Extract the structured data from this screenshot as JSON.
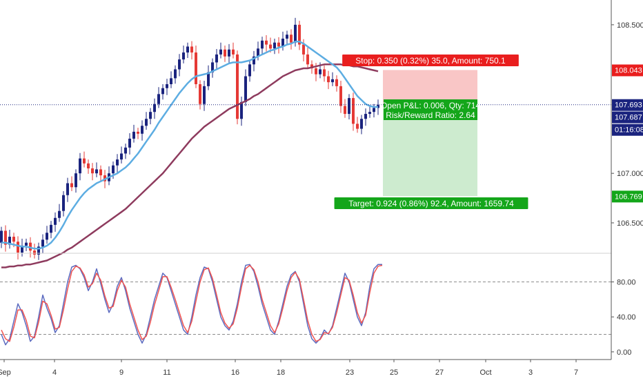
{
  "chart_data": [
    {
      "type": "candlestick",
      "ylim": [
        106.2,
        108.75
      ],
      "y_ticks": [
        "106.500",
        "107.000",
        "108.500"
      ],
      "x_ticks": [
        "Sep",
        "4",
        "9",
        "11",
        "16",
        "18",
        "23",
        "25",
        "27",
        "Oct",
        "3",
        "7"
      ],
      "colors": {
        "up": "#1a237e",
        "down": "#e53935",
        "ma_fast": "#5dade2",
        "ma_slow": "#8e3b5e",
        "grid": "#8a8a8a",
        "stop_zone": "#f9c6c6",
        "target_zone": "#cdebcf"
      },
      "price_tags": [
        {
          "label": "108.043",
          "value": 108.043,
          "color": "#e91e1e"
        },
        {
          "label": "107.693",
          "value": 107.693,
          "color": "#1a237e"
        },
        {
          "label": "107.687",
          "value": 107.687,
          "color": "#1a237e"
        },
        {
          "label": "01:16:08",
          "value": 107.55,
          "color": "#1a237e"
        },
        {
          "label": "106.769",
          "value": 106.769,
          "color": "#14a61a"
        }
      ],
      "current_price": 107.693,
      "position": {
        "entry": 107.693,
        "stop": 108.043,
        "target": 106.769,
        "stop_label": "Stop: 0.350 (0.32%) 35.0, Amount: 750.1",
        "pnl_label": "Open P&L: 0.006, Qty: 714",
        "rr_label": "Risk/Reward Ratio: 2.64",
        "target_label": "Target: 0.924 (0.86%) 92.4, Amount: 1659.74"
      },
      "candles_close": [
        106.42,
        106.28,
        106.36,
        106.31,
        106.2,
        106.27,
        106.3,
        106.22,
        106.18,
        106.26,
        106.33,
        106.4,
        106.48,
        106.55,
        106.62,
        106.78,
        106.9,
        106.86,
        107.0,
        107.15,
        107.1,
        107.05,
        107.0,
        107.04,
        106.98,
        106.92,
        107.0,
        107.08,
        107.14,
        107.2,
        107.26,
        107.35,
        107.42,
        107.4,
        107.48,
        107.55,
        107.62,
        107.7,
        107.8,
        107.86,
        107.9,
        107.96,
        108.05,
        108.15,
        108.22,
        108.28,
        108.22,
        107.9,
        107.7,
        107.88,
        108.02,
        108.12,
        108.2,
        108.25,
        108.18,
        108.25,
        108.2,
        107.55,
        107.72,
        107.98,
        108.1,
        108.18,
        108.26,
        108.34,
        108.3,
        108.26,
        108.32,
        108.28,
        108.36,
        108.4,
        108.32,
        108.5,
        108.3,
        108.2,
        108.1,
        108.06,
        108.0,
        108.05,
        107.98,
        107.92,
        107.95,
        107.88,
        107.68,
        107.6,
        107.76,
        107.5,
        107.45,
        107.55,
        107.6,
        107.62,
        107.66,
        107.69
      ],
      "candles_open": [
        106.3,
        106.42,
        106.28,
        106.36,
        106.31,
        106.2,
        106.27,
        106.3,
        106.22,
        106.18,
        106.26,
        106.33,
        106.4,
        106.48,
        106.55,
        106.62,
        106.78,
        106.9,
        106.86,
        107.0,
        107.15,
        107.1,
        107.05,
        107.0,
        107.04,
        106.98,
        106.92,
        107.0,
        107.08,
        107.14,
        107.2,
        107.26,
        107.35,
        107.42,
        107.4,
        107.48,
        107.55,
        107.62,
        107.7,
        107.8,
        107.86,
        107.9,
        107.96,
        108.05,
        108.15,
        108.22,
        108.28,
        108.22,
        107.9,
        107.7,
        107.88,
        108.02,
        108.12,
        108.2,
        108.25,
        108.18,
        108.25,
        108.2,
        107.55,
        107.72,
        107.98,
        108.1,
        108.18,
        108.26,
        108.34,
        108.3,
        108.26,
        108.32,
        108.28,
        108.36,
        108.4,
        108.32,
        108.5,
        108.3,
        108.2,
        108.1,
        108.06,
        108.0,
        108.05,
        107.98,
        107.92,
        107.95,
        107.88,
        107.68,
        107.6,
        107.76,
        107.5,
        107.45,
        107.55,
        107.6,
        107.62,
        107.66
      ],
      "ma_fast": [
        106.3,
        106.3,
        106.29,
        106.28,
        106.27,
        106.26,
        106.26,
        106.25,
        106.24,
        106.24,
        106.25,
        106.27,
        106.3,
        106.35,
        106.41,
        106.48,
        106.56,
        106.63,
        106.69,
        106.75,
        106.8,
        106.84,
        106.87,
        106.9,
        106.92,
        106.94,
        106.96,
        106.98,
        107.0,
        107.03,
        107.06,
        107.1,
        107.15,
        107.2,
        107.26,
        107.32,
        107.38,
        107.44,
        107.51,
        107.57,
        107.63,
        107.69,
        107.75,
        107.81,
        107.86,
        107.91,
        107.95,
        107.98,
        107.99,
        108.0,
        108.01,
        108.03,
        108.05,
        108.07,
        108.09,
        108.11,
        108.12,
        108.12,
        108.12,
        108.13,
        108.14,
        108.16,
        108.18,
        108.2,
        108.22,
        108.24,
        108.25,
        108.27,
        108.28,
        108.3,
        108.31,
        108.33,
        108.33,
        108.31,
        108.28,
        108.25,
        108.22,
        108.19,
        108.16,
        108.13,
        108.1,
        108.07,
        108.02,
        107.96,
        107.9,
        107.84,
        107.78,
        107.74,
        107.7,
        107.68,
        107.67,
        107.67
      ],
      "ma_slow": [
        106.05,
        106.05,
        106.06,
        106.06,
        106.07,
        106.07,
        106.08,
        106.08,
        106.09,
        106.1,
        106.11,
        106.12,
        106.14,
        106.16,
        106.18,
        106.2,
        106.23,
        106.25,
        106.28,
        106.31,
        106.34,
        106.37,
        106.4,
        106.43,
        106.46,
        106.49,
        106.52,
        106.55,
        106.58,
        106.61,
        106.64,
        106.68,
        106.72,
        106.76,
        106.8,
        106.84,
        106.88,
        106.92,
        106.96,
        107.0,
        107.05,
        107.1,
        107.15,
        107.2,
        107.25,
        107.3,
        107.35,
        107.39,
        107.43,
        107.47,
        107.5,
        107.53,
        107.56,
        107.59,
        107.62,
        107.65,
        107.67,
        107.69,
        107.71,
        107.73,
        107.75,
        107.78,
        107.8,
        107.83,
        107.86,
        107.89,
        107.92,
        107.95,
        107.98,
        108.0,
        108.02,
        108.04,
        108.05,
        108.06,
        108.06,
        108.07,
        108.08,
        108.09,
        108.1,
        108.1,
        108.1,
        108.1,
        108.1,
        108.09,
        108.09,
        108.08,
        108.08,
        108.07,
        108.06,
        108.05,
        108.04,
        108.03
      ]
    },
    {
      "type": "line",
      "ylim": [
        -8,
        112
      ],
      "y_ticks": [
        "0.00",
        "40.00",
        "80.00"
      ],
      "levels": [
        80,
        20
      ],
      "series": [
        {
          "color": "#5c6bc0",
          "values": [
            20,
            8,
            15,
            35,
            55,
            45,
            30,
            12,
            18,
            40,
            65,
            50,
            38,
            22,
            30,
            55,
            80,
            97,
            99,
            95,
            85,
            70,
            80,
            95,
            78,
            60,
            45,
            55,
            75,
            85,
            70,
            50,
            35,
            20,
            10,
            20,
            40,
            60,
            75,
            90,
            85,
            70,
            55,
            40,
            25,
            20,
            40,
            65,
            85,
            97,
            95,
            80,
            60,
            40,
            30,
            25,
            35,
            55,
            80,
            99,
            100,
            92,
            75,
            55,
            40,
            25,
            20,
            35,
            55,
            75,
            88,
            92,
            80,
            55,
            30,
            15,
            10,
            15,
            25,
            20,
            30,
            50,
            70,
            90,
            80,
            60,
            40,
            30,
            45,
            75,
            95,
            100,
            100
          ]
        },
        {
          "color": "#ef5350",
          "values": [
            25,
            15,
            12,
            28,
            48,
            48,
            36,
            18,
            16,
            34,
            58,
            55,
            42,
            26,
            28,
            48,
            72,
            92,
            98,
            96,
            88,
            74,
            78,
            90,
            82,
            64,
            50,
            52,
            70,
            82,
            74,
            55,
            40,
            25,
            14,
            18,
            34,
            54,
            70,
            86,
            86,
            74,
            60,
            45,
            30,
            22,
            35,
            58,
            80,
            94,
            96,
            84,
            65,
            45,
            33,
            27,
            32,
            50,
            74,
            95,
            99,
            94,
            80,
            60,
            45,
            30,
            22,
            32,
            50,
            70,
            85,
            91,
            83,
            60,
            36,
            20,
            12,
            14,
            22,
            21,
            28,
            45,
            65,
            85,
            82,
            65,
            45,
            33,
            42,
            68,
            90,
            98,
            99
          ]
        }
      ]
    }
  ]
}
